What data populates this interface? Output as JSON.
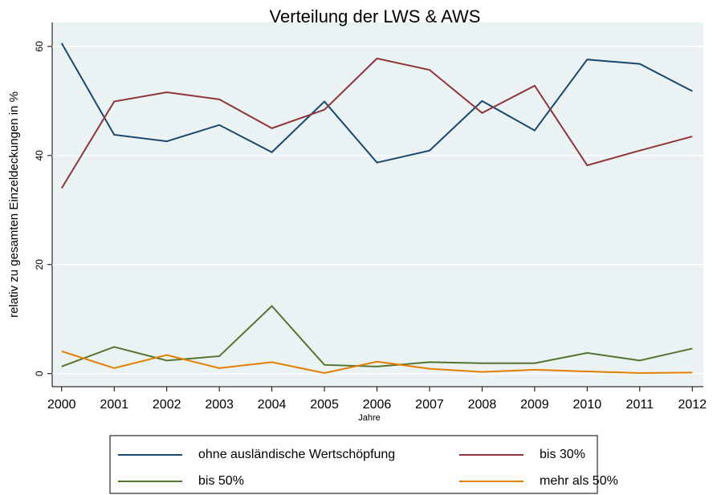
{
  "chart_data": {
    "type": "line",
    "title": "Verteilung der LWS & AWS",
    "xlabel": "Jahre",
    "ylabel": "relativ zu gesamten Einzeldeckungen in %",
    "x": [
      2000,
      2001,
      2002,
      2003,
      2004,
      2005,
      2006,
      2007,
      2008,
      2009,
      2010,
      2011,
      2012
    ],
    "series": [
      {
        "name": "ohne ausländische Wertschöpfung",
        "color": "#1a476f",
        "values": [
          60.6,
          43.8,
          42.6,
          45.6,
          40.6,
          49.9,
          38.7,
          40.9,
          50.0,
          44.6,
          57.6,
          56.8,
          51.8
        ]
      },
      {
        "name": "bis 30%",
        "color": "#90353b",
        "values": [
          34.0,
          49.9,
          51.6,
          50.3,
          45.0,
          48.4,
          57.8,
          55.7,
          47.8,
          52.8,
          38.2,
          40.9,
          43.5
        ]
      },
      {
        "name": "bis 50%",
        "color": "#55752f",
        "values": [
          1.3,
          4.9,
          2.4,
          3.2,
          12.4,
          1.6,
          1.3,
          2.1,
          1.9,
          1.9,
          3.8,
          2.4,
          4.6
        ]
      },
      {
        "name": "mehr als 50%",
        "color": "#e37e00",
        "values": [
          4.1,
          1.0,
          3.4,
          1.0,
          2.1,
          0.1,
          2.2,
          0.9,
          0.3,
          0.7,
          0.4,
          0.1,
          0.2
        ]
      }
    ],
    "xlim": [
      1999.82,
      2012.21
    ],
    "xticks": [
      2000,
      2001,
      2002,
      2003,
      2004,
      2005,
      2006,
      2007,
      2008,
      2009,
      2010,
      2011,
      2012
    ],
    "ylim": [
      -2.4,
      64.4
    ],
    "yticks": [
      0,
      20,
      40,
      60
    ],
    "grid": true,
    "legend": "bottom"
  }
}
